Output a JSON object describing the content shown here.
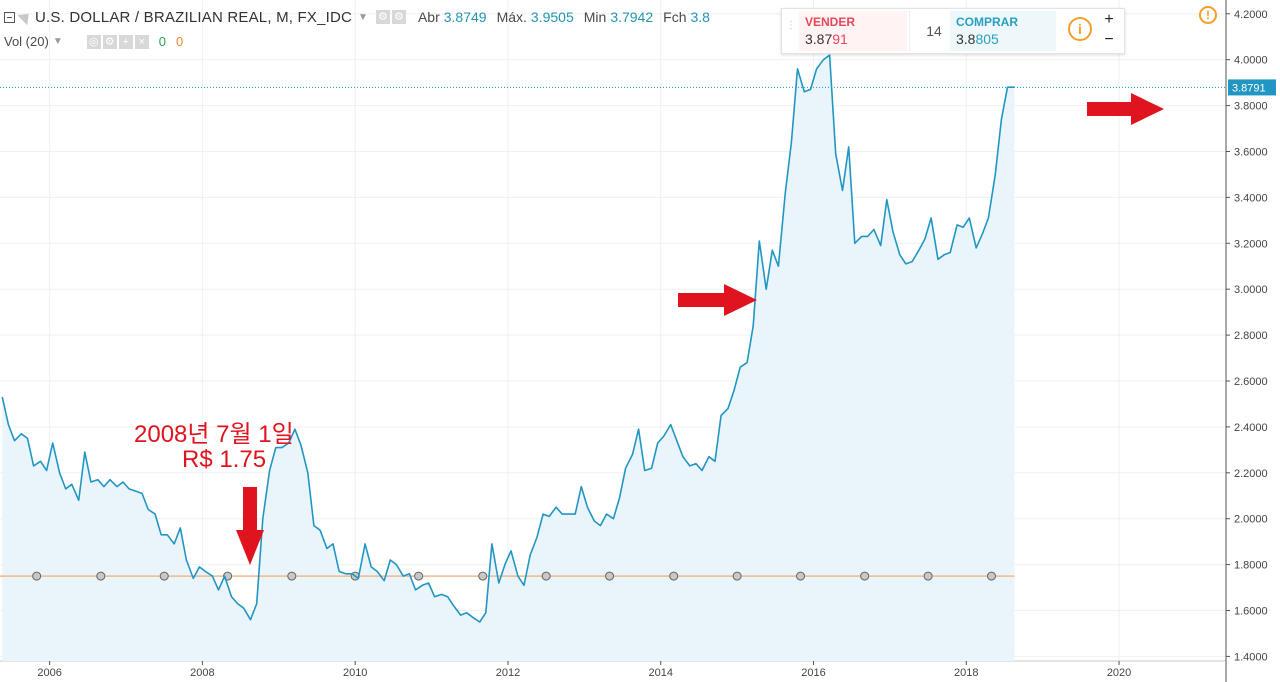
{
  "header": {
    "symbol": "U.S. DOLLAR / BRAZILIAN REAL, M, FX_IDC",
    "open_label": "Abr",
    "open": "3.8749",
    "high_label": "Máx.",
    "high": "3.9505",
    "low_label": "Min",
    "low": "3.7942",
    "close_label": "Fch",
    "close": "3.8"
  },
  "volume": {
    "label": "Vol (20)",
    "v1": "0",
    "v2": "0"
  },
  "trade_panel": {
    "sell_label": "VENDER",
    "sell_price_a": "3.87",
    "sell_price_b": "91",
    "spread": "14",
    "buy_label": "COMPRAR",
    "buy_price_a": "3.8",
    "buy_price_b": "805",
    "zoom_in": "+",
    "zoom_out": "−"
  },
  "annotation": {
    "line1": "2008년 7월 1일",
    "line2": "R$ 1.75"
  },
  "icons": [
    "collapse-icon",
    "flag-icon",
    "settings-icon",
    "info-icon",
    "alert-icon",
    "red-arrow-icon"
  ],
  "colors": {
    "line": "#2196c3",
    "fill": "#eaf4fb",
    "reference_line": "#f2b98a",
    "annotation": "#e0141e",
    "price_label_bg": "#2196c3"
  },
  "chart_data": {
    "type": "area",
    "x_ticks": [
      "2006",
      "2008",
      "2010",
      "2012",
      "2014",
      "2016",
      "2018",
      "2020"
    ],
    "y_ticks": [
      "1.4000",
      "1.6000",
      "1.8000",
      "2.0000",
      "2.2000",
      "2.4000",
      "2.6000",
      "2.8000",
      "3.0000",
      "3.2000",
      "3.4000",
      "3.6000",
      "3.8000",
      "4.0000",
      "4.2000"
    ],
    "ylim": [
      1.38,
      4.26
    ],
    "xlim": [
      2005.35,
      2021.4
    ],
    "last_price": "3.8791",
    "reference_level": 1.75,
    "reference_markers_x": [
      2005.83,
      2006.67,
      2007.5,
      2008.33,
      2009.17,
      2010.0,
      2010.83,
      2011.67,
      2012.5,
      2013.33,
      2014.17,
      2015.0,
      2015.83,
      2016.67,
      2017.5,
      2018.33
    ],
    "series": [
      {
        "values": [
          [
            2005.38,
            2.53
          ],
          [
            2005.46,
            2.41
          ],
          [
            2005.54,
            2.34
          ],
          [
            2005.63,
            2.37
          ],
          [
            2005.71,
            2.35
          ],
          [
            2005.79,
            2.23
          ],
          [
            2005.88,
            2.25
          ],
          [
            2005.96,
            2.21
          ],
          [
            2006.04,
            2.33
          ],
          [
            2006.13,
            2.2
          ],
          [
            2006.21,
            2.13
          ],
          [
            2006.29,
            2.15
          ],
          [
            2006.38,
            2.08
          ],
          [
            2006.46,
            2.29
          ],
          [
            2006.54,
            2.16
          ],
          [
            2006.63,
            2.17
          ],
          [
            2006.71,
            2.14
          ],
          [
            2006.79,
            2.17
          ],
          [
            2006.88,
            2.14
          ],
          [
            2006.96,
            2.16
          ],
          [
            2007.04,
            2.13
          ],
          [
            2007.13,
            2.12
          ],
          [
            2007.21,
            2.11
          ],
          [
            2007.29,
            2.04
          ],
          [
            2007.38,
            2.02
          ],
          [
            2007.46,
            1.93
          ],
          [
            2007.54,
            1.93
          ],
          [
            2007.63,
            1.89
          ],
          [
            2007.71,
            1.96
          ],
          [
            2007.79,
            1.82
          ],
          [
            2007.88,
            1.74
          ],
          [
            2007.96,
            1.79
          ],
          [
            2008.04,
            1.77
          ],
          [
            2008.13,
            1.75
          ],
          [
            2008.21,
            1.69
          ],
          [
            2008.29,
            1.75
          ],
          [
            2008.38,
            1.66
          ],
          [
            2008.46,
            1.63
          ],
          [
            2008.54,
            1.61
          ],
          [
            2008.63,
            1.56
          ],
          [
            2008.71,
            1.63
          ],
          [
            2008.79,
            2.0
          ],
          [
            2008.88,
            2.21
          ],
          [
            2008.96,
            2.31
          ],
          [
            2009.04,
            2.31
          ],
          [
            2009.13,
            2.33
          ],
          [
            2009.21,
            2.39
          ],
          [
            2009.29,
            2.32
          ],
          [
            2009.38,
            2.2
          ],
          [
            2009.46,
            1.97
          ],
          [
            2009.54,
            1.95
          ],
          [
            2009.63,
            1.87
          ],
          [
            2009.71,
            1.89
          ],
          [
            2009.79,
            1.77
          ],
          [
            2009.88,
            1.76
          ],
          [
            2009.96,
            1.76
          ],
          [
            2010.04,
            1.74
          ],
          [
            2010.13,
            1.89
          ],
          [
            2010.21,
            1.79
          ],
          [
            2010.29,
            1.77
          ],
          [
            2010.38,
            1.73
          ],
          [
            2010.46,
            1.82
          ],
          [
            2010.54,
            1.8
          ],
          [
            2010.63,
            1.75
          ],
          [
            2010.71,
            1.76
          ],
          [
            2010.79,
            1.69
          ],
          [
            2010.88,
            1.71
          ],
          [
            2010.96,
            1.72
          ],
          [
            2011.04,
            1.66
          ],
          [
            2011.13,
            1.67
          ],
          [
            2011.21,
            1.66
          ],
          [
            2011.29,
            1.62
          ],
          [
            2011.38,
            1.58
          ],
          [
            2011.46,
            1.59
          ],
          [
            2011.54,
            1.57
          ],
          [
            2011.63,
            1.55
          ],
          [
            2011.71,
            1.59
          ],
          [
            2011.79,
            1.89
          ],
          [
            2011.88,
            1.72
          ],
          [
            2011.96,
            1.8
          ],
          [
            2012.04,
            1.86
          ],
          [
            2012.13,
            1.75
          ],
          [
            2012.21,
            1.71
          ],
          [
            2012.29,
            1.84
          ],
          [
            2012.38,
            1.92
          ],
          [
            2012.46,
            2.02
          ],
          [
            2012.54,
            2.01
          ],
          [
            2012.63,
            2.05
          ],
          [
            2012.71,
            2.02
          ],
          [
            2012.79,
            2.02
          ],
          [
            2012.88,
            2.02
          ],
          [
            2012.96,
            2.14
          ],
          [
            2013.04,
            2.05
          ],
          [
            2013.13,
            1.99
          ],
          [
            2013.21,
            1.97
          ],
          [
            2013.29,
            2.02
          ],
          [
            2013.38,
            2.0
          ],
          [
            2013.46,
            2.09
          ],
          [
            2013.54,
            2.22
          ],
          [
            2013.63,
            2.28
          ],
          [
            2013.71,
            2.39
          ],
          [
            2013.79,
            2.21
          ],
          [
            2013.88,
            2.22
          ],
          [
            2013.96,
            2.33
          ],
          [
            2014.04,
            2.36
          ],
          [
            2014.13,
            2.41
          ],
          [
            2014.21,
            2.34
          ],
          [
            2014.29,
            2.27
          ],
          [
            2014.38,
            2.23
          ],
          [
            2014.46,
            2.24
          ],
          [
            2014.54,
            2.21
          ],
          [
            2014.63,
            2.27
          ],
          [
            2014.71,
            2.25
          ],
          [
            2014.79,
            2.45
          ],
          [
            2014.88,
            2.48
          ],
          [
            2014.96,
            2.56
          ],
          [
            2015.04,
            2.66
          ],
          [
            2015.13,
            2.68
          ],
          [
            2015.21,
            2.84
          ],
          [
            2015.29,
            3.21
          ],
          [
            2015.38,
            3.0
          ],
          [
            2015.46,
            3.17
          ],
          [
            2015.54,
            3.1
          ],
          [
            2015.63,
            3.42
          ],
          [
            2015.71,
            3.64
          ],
          [
            2015.79,
            3.96
          ],
          [
            2015.88,
            3.86
          ],
          [
            2015.96,
            3.87
          ],
          [
            2016.04,
            3.96
          ],
          [
            2016.13,
            4.0
          ],
          [
            2016.21,
            4.02
          ],
          [
            2016.29,
            3.59
          ],
          [
            2016.38,
            3.43
          ],
          [
            2016.46,
            3.62
          ],
          [
            2016.54,
            3.2
          ],
          [
            2016.63,
            3.23
          ],
          [
            2016.71,
            3.23
          ],
          [
            2016.79,
            3.26
          ],
          [
            2016.88,
            3.19
          ],
          [
            2016.96,
            3.39
          ],
          [
            2017.04,
            3.25
          ],
          [
            2017.13,
            3.15
          ],
          [
            2017.21,
            3.11
          ],
          [
            2017.29,
            3.12
          ],
          [
            2017.38,
            3.17
          ],
          [
            2017.46,
            3.22
          ],
          [
            2017.54,
            3.31
          ],
          [
            2017.63,
            3.13
          ],
          [
            2017.71,
            3.15
          ],
          [
            2017.79,
            3.16
          ],
          [
            2017.88,
            3.28
          ],
          [
            2017.96,
            3.27
          ],
          [
            2018.04,
            3.31
          ],
          [
            2018.13,
            3.18
          ],
          [
            2018.21,
            3.24
          ],
          [
            2018.29,
            3.31
          ],
          [
            2018.38,
            3.5
          ],
          [
            2018.46,
            3.74
          ],
          [
            2018.54,
            3.88
          ],
          [
            2018.63,
            3.88
          ]
        ]
      }
    ]
  }
}
